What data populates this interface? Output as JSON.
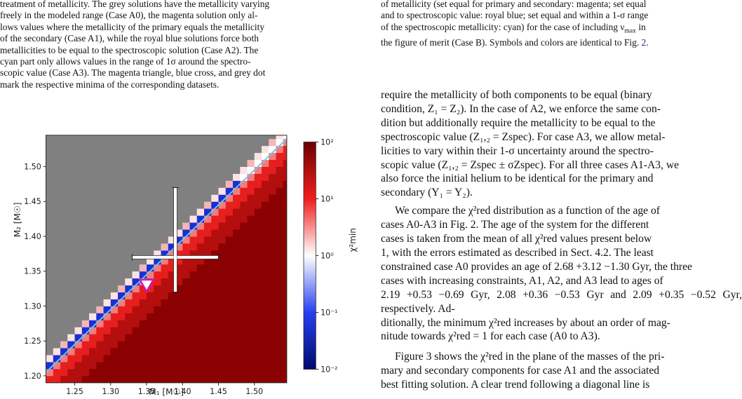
{
  "left_caption": {
    "lines": [
      "treatment of metallicity. The grey solutions have the metallicity varying",
      "freely in the modeled range (Case A0), the magenta solution only al-",
      "lows values where the metallicity of the primary equals the metallicity",
      "of the secondary (Case A1), while the royal blue solutions force both",
      "metallicities to be equal to the spectroscopic solution (Case A2). The",
      "cyan part only allows values in the range of 1σ around the spectro-",
      "scopic value (Case A3). The magenta triangle, blue cross, and grey dot",
      "mark the respective minima of the corresponding datasets."
    ]
  },
  "right_caption": {
    "lines": [
      "of metallicity (set equal for primary and secondary: magenta; set equal",
      "and to spectroscopic value: royal blue; set equal and within a 1-σ range",
      "of the spectroscopic metallicity: cyan) for the case of including ν",
      "the figure of merit (Case B). Symbols and colors are identical to Fig. "
    ],
    "numax_sub": "max",
    "in_text": " in",
    "fig_ref": "2",
    "period": "."
  },
  "body": {
    "p1_lines": [
      "require the metallicity of both components to be equal (binary",
      "condition, Z₁ = Z₂). In the case of A2, we enforce the same con-",
      "dition but additionally require the metallicity to be equal to the",
      "spectroscopic value (Z₁,₂ = Zspec). For case A3, we allow metal-",
      "licities to vary within their 1-σ uncertainty around the spectro-",
      "scopic value (Z₁,₂ = Zspec ± σZspec). For all three cases A1-A3, we",
      "also force the initial helium to be identical for the primary and",
      "secondary (Y₁ = Y₂)."
    ],
    "p2_lines": [
      "We compare the χ²red distribution as a function of the age of",
      "cases A0-A3 in Fig. 2. The age of the system for the different",
      "cases is taken from the mean of all χ²red values present below",
      "1, with the errors estimated as described in Sect. 4.2. The least",
      "constrained case A0 provides an age of 2.68 +3.12 −1.30 Gyr, the three",
      "cases with increasing constraints, A1, A2, and A3 lead to ages of",
      "2.19 +0.53 −0.69 Gyr, 2.08 +0.36 −0.53 Gyr and 2.09 +0.35 −0.52 Gyr, respectively. Ad-",
      "ditionally, the minimum χ²red increases by about an order of mag-",
      "nitude towards χ²red = 1 for each case (A0 to A3)."
    ],
    "p3_lines": [
      "Figure 3 shows the χ²red in the plane of the masses of the pri-",
      "mary and secondary components for case A1 and the associated",
      "best fitting solution. A clear trend following a diagonal line is"
    ]
  },
  "chart_data": {
    "type": "heatmap",
    "title": "",
    "xlabel": "M₁ [M☉]",
    "ylabel": "M₂ [M☉]",
    "colorbar_label": "χ²min",
    "xlim": [
      1.21,
      1.545
    ],
    "ylim": [
      1.19,
      1.545
    ],
    "x_ticks": [
      "1.25",
      "1.30",
      "1.35",
      "1.40",
      "1.45",
      "1.50"
    ],
    "y_ticks": [
      "1.20",
      "1.25",
      "1.30",
      "1.35",
      "1.40",
      "1.45",
      "1.50"
    ],
    "colorbar_ticks": [
      "10²",
      "10¹",
      "10⁰",
      "10⁻¹",
      "10⁻²"
    ],
    "colorbar_range_log10": [
      -2,
      2
    ],
    "grid_step": 0.01,
    "grey_region": "M₂ > M₁ (no solution)",
    "cyan_line": {
      "from": [
        1.21,
        1.205
      ],
      "to": [
        1.545,
        1.54
      ]
    },
    "markers": [
      {
        "kind": "magenta-triangle",
        "M1": 1.35,
        "M2": 1.33
      },
      {
        "kind": "blue-cross",
        "M1": 1.39,
        "M2": 1.37,
        "xerr": [
          0.06,
          0.06
        ],
        "yerr": [
          0.05,
          0.1
        ]
      }
    ],
    "colors": {
      "grey": "#808080",
      "deep_red": "#8b0000",
      "red": "#e61e1e",
      "blue": "#1a2fd6",
      "cyan": "#6fc6e8",
      "magenta": "#c21cc2"
    }
  }
}
